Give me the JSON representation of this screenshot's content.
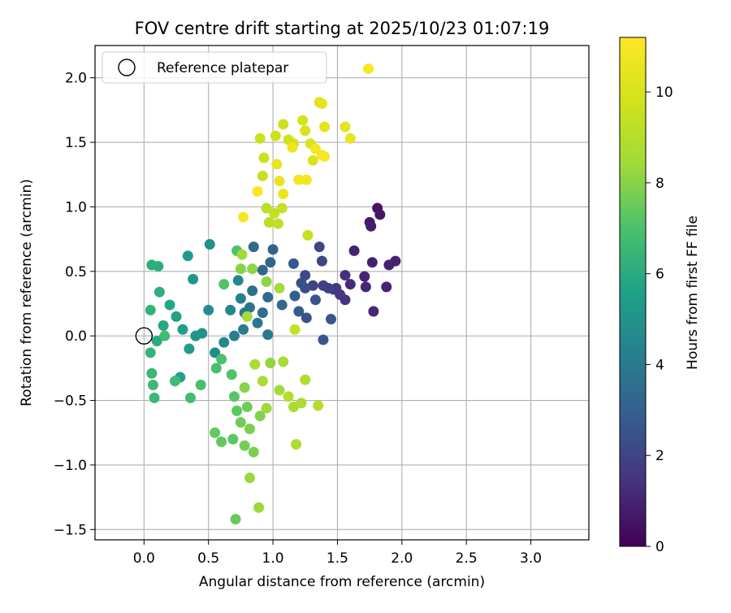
{
  "chart_data": {
    "type": "scatter",
    "title": "FOV centre drift starting at 2025/10/23 01:07:19",
    "xlabel": "Angular distance from reference (arcmin)",
    "ylabel": "Rotation from reference (arcmin)",
    "xlim": [
      -0.38,
      3.45
    ],
    "ylim": [
      -1.58,
      2.25
    ],
    "xticks": [
      0.0,
      0.5,
      1.0,
      1.5,
      2.0,
      2.5,
      3.0
    ],
    "xtick_labels": [
      "0.0",
      "0.5",
      "1.0",
      "1.5",
      "2.0",
      "2.5",
      "3.0"
    ],
    "yticks": [
      -1.5,
      -1.0,
      -0.5,
      0.0,
      0.5,
      1.0,
      1.5,
      2.0
    ],
    "ytick_labels": [
      "−1.5",
      "−1.0",
      "−0.5",
      "0.0",
      "0.5",
      "1.0",
      "1.5",
      "2.0"
    ],
    "grid": true,
    "legend": {
      "placement": "top-left",
      "entries": [
        {
          "label": "Reference platepar",
          "marker": "open-circle"
        }
      ]
    },
    "reference_point": {
      "x": 0.0,
      "y": 0.0
    },
    "colorbar": {
      "label": "Hours from first FF file",
      "colormap": "viridis",
      "range": [
        0,
        11.2
      ],
      "ticks": [
        0,
        2,
        4,
        6,
        8,
        10
      ],
      "tick_labels": [
        "0",
        "2",
        "4",
        "6",
        "8",
        "10"
      ]
    },
    "series": [
      {
        "values_note": "",
        "points": [
          [
            1.81,
            0.99,
            0.5
          ],
          [
            1.83,
            0.94,
            0.6
          ],
          [
            1.75,
            0.88,
            0.7
          ],
          [
            1.76,
            0.85,
            0.8
          ],
          [
            1.95,
            0.58,
            0.9
          ],
          [
            1.9,
            0.55,
            0.9
          ],
          [
            1.77,
            0.57,
            0.9
          ],
          [
            1.63,
            0.66,
            1.0
          ],
          [
            1.88,
            0.38,
            1.0
          ],
          [
            1.71,
            0.46,
            1.0
          ],
          [
            1.72,
            0.38,
            1.1
          ],
          [
            1.78,
            0.19,
            1.1
          ],
          [
            1.6,
            0.4,
            1.2
          ],
          [
            1.56,
            0.47,
            1.3
          ],
          [
            1.56,
            0.28,
            1.4
          ],
          [
            1.47,
            0.36,
            1.5
          ],
          [
            1.52,
            0.32,
            1.6
          ],
          [
            1.49,
            0.37,
            1.7
          ],
          [
            1.43,
            0.37,
            1.8
          ],
          [
            1.39,
            0.39,
            1.9
          ],
          [
            1.31,
            0.39,
            2.0
          ],
          [
            1.36,
            0.69,
            2.1
          ],
          [
            1.38,
            0.58,
            2.1
          ],
          [
            1.25,
            0.47,
            2.2
          ],
          [
            1.25,
            0.37,
            2.3
          ],
          [
            1.22,
            0.41,
            2.4
          ],
          [
            1.33,
            0.28,
            2.5
          ],
          [
            1.26,
            0.14,
            2.5
          ],
          [
            1.45,
            0.13,
            2.6
          ],
          [
            1.39,
            -0.03,
            2.6
          ],
          [
            1.16,
            0.56,
            2.7
          ],
          [
            1.2,
            0.19,
            2.8
          ],
          [
            1.17,
            0.31,
            2.9
          ],
          [
            1.0,
            0.67,
            3.0
          ],
          [
            0.98,
            0.57,
            3.1
          ],
          [
            0.92,
            0.51,
            3.2
          ],
          [
            0.85,
            0.69,
            3.3
          ],
          [
            1.07,
            0.24,
            3.3
          ],
          [
            0.96,
            0.3,
            3.4
          ],
          [
            0.92,
            0.18,
            3.5
          ],
          [
            0.84,
            0.35,
            3.6
          ],
          [
            0.82,
            0.22,
            3.7
          ],
          [
            0.78,
            0.18,
            3.8
          ],
          [
            0.88,
            0.1,
            3.9
          ],
          [
            0.96,
            0.01,
            4.0
          ],
          [
            0.77,
            0.05,
            4.1
          ],
          [
            0.7,
            0.0,
            4.2
          ],
          [
            0.75,
            0.29,
            4.3
          ],
          [
            0.73,
            0.43,
            4.4
          ],
          [
            0.67,
            0.2,
            4.5
          ],
          [
            0.62,
            -0.05,
            4.6
          ],
          [
            0.55,
            -0.13,
            4.7
          ],
          [
            0.5,
            0.2,
            4.8
          ],
          [
            0.51,
            0.71,
            4.9
          ],
          [
            0.45,
            0.02,
            5.0
          ],
          [
            0.4,
            0.0,
            5.1
          ],
          [
            0.38,
            0.44,
            5.2
          ],
          [
            0.34,
            0.62,
            5.3
          ],
          [
            0.35,
            -0.1,
            5.4
          ],
          [
            0.3,
            0.05,
            5.5
          ],
          [
            0.28,
            -0.32,
            5.6
          ],
          [
            0.25,
            0.15,
            5.7
          ],
          [
            0.2,
            0.24,
            5.8
          ],
          [
            0.15,
            0.08,
            5.9
          ],
          [
            0.1,
            -0.04,
            6.0
          ],
          [
            0.06,
            0.55,
            6.1
          ],
          [
            0.11,
            0.54,
            6.1
          ],
          [
            0.12,
            0.34,
            6.2
          ],
          [
            0.05,
            0.2,
            6.3
          ],
          [
            0.05,
            -0.13,
            6.4
          ],
          [
            0.06,
            -0.29,
            6.5
          ],
          [
            0.07,
            -0.38,
            6.6
          ],
          [
            0.08,
            -0.48,
            6.6
          ],
          [
            0.16,
            0.0,
            6.7
          ],
          [
            0.24,
            -0.35,
            6.7
          ],
          [
            0.36,
            -0.48,
            6.8
          ],
          [
            0.44,
            -0.38,
            6.9
          ],
          [
            0.56,
            -0.25,
            6.9
          ],
          [
            0.6,
            -0.18,
            7.0
          ],
          [
            0.72,
            0.66,
            7.0
          ],
          [
            0.62,
            0.4,
            7.1
          ],
          [
            0.68,
            -0.3,
            7.1
          ],
          [
            0.7,
            -0.47,
            7.2
          ],
          [
            0.72,
            -0.58,
            7.3
          ],
          [
            0.69,
            -0.8,
            7.3
          ],
          [
            0.6,
            -0.82,
            7.4
          ],
          [
            0.55,
            -0.75,
            7.4
          ],
          [
            0.71,
            -1.42,
            7.5
          ],
          [
            0.75,
            -0.67,
            7.6
          ],
          [
            0.8,
            -0.55,
            7.6
          ],
          [
            0.78,
            -0.85,
            7.7
          ],
          [
            0.85,
            -0.9,
            7.8
          ],
          [
            0.82,
            -0.72,
            7.8
          ],
          [
            0.9,
            -0.62,
            7.9
          ],
          [
            0.78,
            -0.4,
            8.0
          ],
          [
            0.75,
            0.52,
            8.0
          ],
          [
            0.84,
            0.52,
            8.1
          ],
          [
            0.95,
            0.42,
            8.1
          ],
          [
            0.98,
            -0.21,
            8.2
          ],
          [
            0.82,
            -1.1,
            8.3
          ],
          [
            0.89,
            -1.33,
            8.3
          ],
          [
            0.95,
            -0.56,
            8.4
          ],
          [
            1.05,
            -0.42,
            8.5
          ],
          [
            1.05,
            0.37,
            8.5
          ],
          [
            1.08,
            -0.2,
            8.6
          ],
          [
            1.16,
            -0.55,
            8.7
          ],
          [
            1.18,
            -0.84,
            8.8
          ],
          [
            1.22,
            -0.52,
            8.8
          ],
          [
            1.25,
            -0.34,
            8.9
          ],
          [
            1.35,
            -0.54,
            9.0
          ],
          [
            0.76,
            0.63,
            8.4
          ],
          [
            0.8,
            0.15,
            8.6
          ],
          [
            0.86,
            -0.22,
            8.7
          ],
          [
            0.92,
            -0.35,
            8.7
          ],
          [
            1.12,
            -0.47,
            9.0
          ],
          [
            0.95,
            0.99,
            9.1
          ],
          [
            0.97,
            0.88,
            9.2
          ],
          [
            1.01,
            0.95,
            9.3
          ],
          [
            1.04,
            0.87,
            9.3
          ],
          [
            1.07,
            0.99,
            9.4
          ],
          [
            1.17,
            0.05,
            9.4
          ],
          [
            1.27,
            0.78,
            9.5
          ],
          [
            0.92,
            1.24,
            9.5
          ],
          [
            0.9,
            1.53,
            9.6
          ],
          [
            0.93,
            1.38,
            9.6
          ],
          [
            1.02,
            1.55,
            9.7
          ],
          [
            1.08,
            1.64,
            9.7
          ],
          [
            1.12,
            1.52,
            9.8
          ],
          [
            1.16,
            1.49,
            9.9
          ],
          [
            1.23,
            1.67,
            9.9
          ],
          [
            1.25,
            1.59,
            10.0
          ],
          [
            1.29,
            1.49,
            10.1
          ],
          [
            1.31,
            1.36,
            10.1
          ],
          [
            1.36,
            1.81,
            10.2
          ],
          [
            1.38,
            1.8,
            10.3
          ],
          [
            1.4,
            1.62,
            10.4
          ],
          [
            1.56,
            1.62,
            10.4
          ],
          [
            1.6,
            1.53,
            10.5
          ],
          [
            1.03,
            1.33,
            10.5
          ],
          [
            1.05,
            1.2,
            10.6
          ],
          [
            1.08,
            1.1,
            10.6
          ],
          [
            1.15,
            1.46,
            10.7
          ],
          [
            1.2,
            1.21,
            10.8
          ],
          [
            1.26,
            1.21,
            10.8
          ],
          [
            1.33,
            1.45,
            10.9
          ],
          [
            1.38,
            1.4,
            10.9
          ],
          [
            1.4,
            1.39,
            11.0
          ],
          [
            0.77,
            0.92,
            11.0
          ],
          [
            0.88,
            1.12,
            11.1
          ],
          [
            1.74,
            2.07,
            11.1
          ]
        ]
      }
    ]
  }
}
